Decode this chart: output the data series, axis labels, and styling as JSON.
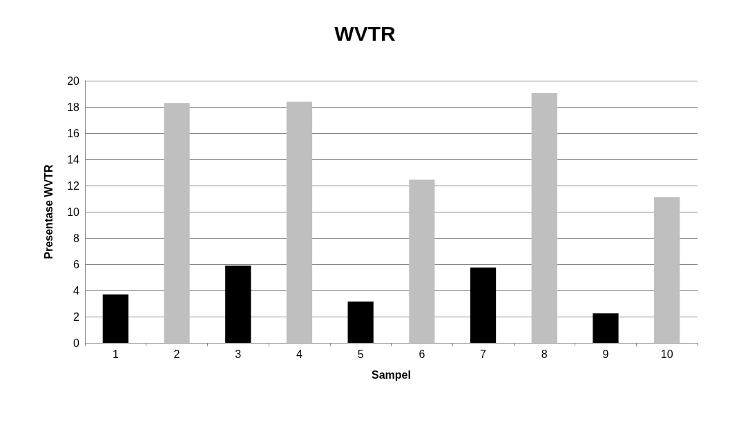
{
  "chart_data": {
    "type": "bar",
    "title": "WVTR",
    "xlabel": "Sampel",
    "ylabel": "Presentase WVTR",
    "categories": [
      "1",
      "2",
      "3",
      "4",
      "5",
      "6",
      "7",
      "8",
      "9",
      "10"
    ],
    "values": [
      3.7,
      18.3,
      5.9,
      18.4,
      3.15,
      12.45,
      5.75,
      19.05,
      2.25,
      11.1
    ],
    "colors": [
      "#000000",
      "#bfbfbf",
      "#000000",
      "#bfbfbf",
      "#000000",
      "#bfbfbf",
      "#000000",
      "#bfbfbf",
      "#000000",
      "#bfbfbf"
    ],
    "ylim": [
      0,
      20
    ],
    "yticks": [
      0,
      2,
      4,
      6,
      8,
      10,
      12,
      14,
      16,
      18,
      20
    ],
    "grid": "y"
  }
}
